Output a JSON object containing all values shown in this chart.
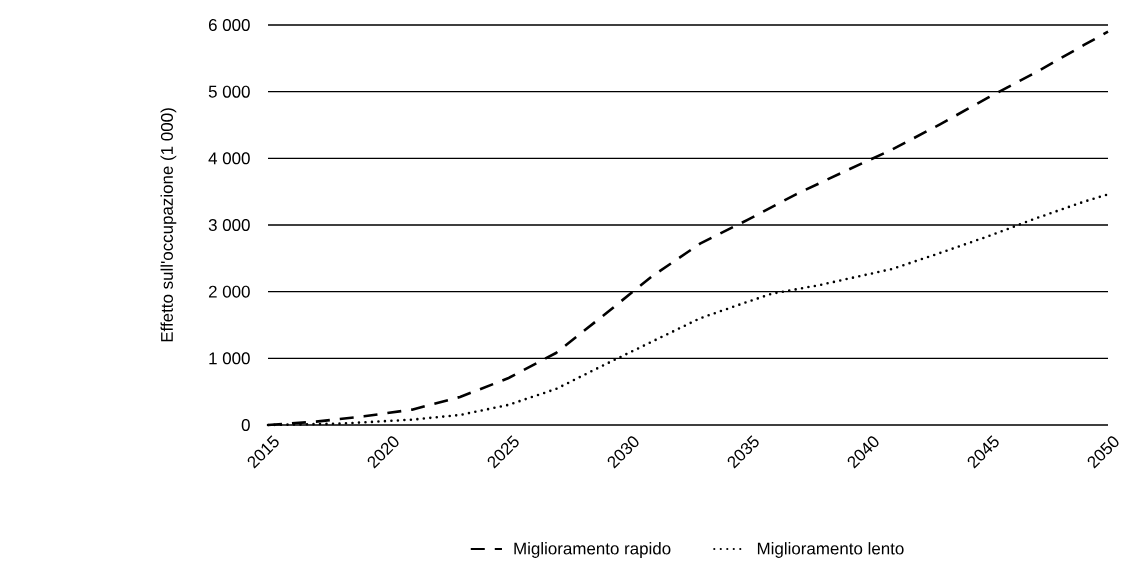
{
  "chart_data": {
    "type": "line",
    "ylabel": "Effetto sull'occupazione (1 000)",
    "xlim": [
      2015,
      2050
    ],
    "xticks": [
      2015,
      2020,
      2025,
      2030,
      2035,
      2040,
      2045,
      2050
    ],
    "ylim": [
      0,
      6000
    ],
    "yticks": [
      0,
      {
        "value": 1000,
        "label": "1 000"
      },
      {
        "value": 2000,
        "label": "2 000"
      },
      {
        "value": 3000,
        "label": "3 000"
      },
      {
        "value": 4000,
        "label": "4 000"
      },
      {
        "value": 5000,
        "label": "5 000"
      },
      {
        "value": 6000,
        "label": "6 000"
      }
    ],
    "grid": "y",
    "legend": "bottom",
    "marker": "none",
    "series": [
      {
        "name": "Miglioramento rapido",
        "color": "#000000",
        "line_style": "dashed",
        "x": [
          2015,
          2017,
          2019,
          2021,
          2023,
          2025,
          2027,
          2029,
          2031,
          2033,
          2035,
          2037,
          2039,
          2041,
          2043,
          2045,
          2047,
          2049,
          2050
        ],
        "values": [
          0,
          50,
          130,
          230,
          420,
          700,
          1080,
          1650,
          2230,
          2720,
          3080,
          3460,
          3800,
          4130,
          4510,
          4910,
          5290,
          5700,
          5900
        ]
      },
      {
        "name": "Miglioramento lento",
        "color": "#000000",
        "line_style": "dotted",
        "x": [
          2015,
          2018,
          2020,
          2021,
          2023,
          2025,
          2027,
          2029,
          2031,
          2033,
          2035,
          2036,
          2038,
          2041,
          2043,
          2045,
          2047,
          2049,
          2050
        ],
        "values": [
          0,
          20,
          60,
          80,
          150,
          300,
          540,
          900,
          1250,
          1600,
          1850,
          1970,
          2100,
          2340,
          2580,
          2830,
          3100,
          3350,
          3460
        ]
      }
    ]
  }
}
